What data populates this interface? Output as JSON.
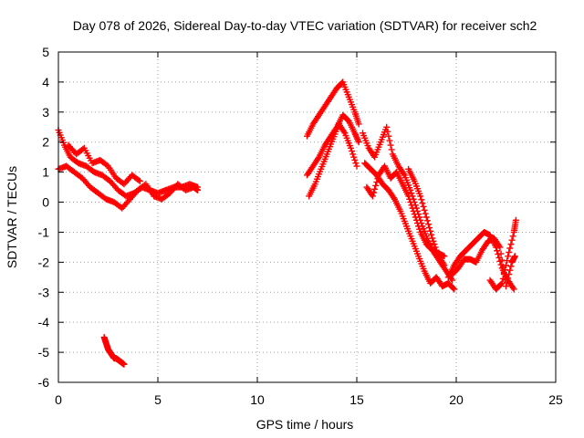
{
  "chart_data": {
    "type": "scatter",
    "title": "Day 078 of 2026, Sidereal Day-to-day VTEC variation (SDTVAR) for receiver sch2",
    "xlabel": "GPS time / hours",
    "ylabel": "SDTVAR / TECUs",
    "xlim": [
      0,
      25
    ],
    "ylim": [
      -6,
      5
    ],
    "xticks": [
      "0",
      "5",
      "10",
      "15",
      "20",
      "25"
    ],
    "yticks": [
      "-6",
      "-5",
      "-4",
      "-3",
      "-2",
      "-1",
      "0",
      "1",
      "2",
      "3",
      "4",
      "5"
    ],
    "grid": true,
    "marker": "+",
    "series": [
      {
        "name": "sdtvar",
        "color": "#ff0000",
        "segments": [
          {
            "x": [
              0.0,
              0.3,
              0.6,
              1.0,
              1.4,
              1.8,
              2.2,
              2.6,
              3.0,
              3.4,
              3.8,
              4.2,
              4.6,
              5.0,
              5.4,
              5.8,
              6.2,
              6.6,
              7.0
            ],
            "y": [
              2.4,
              1.9,
              1.5,
              1.3,
              1.2,
              1.0,
              0.9,
              0.7,
              0.4,
              0.2,
              0.3,
              0.5,
              0.4,
              0.3,
              0.4,
              0.5,
              0.5,
              0.6,
              0.5
            ]
          },
          {
            "x": [
              0.0,
              0.4,
              0.8,
              1.2,
              1.6,
              2.0,
              2.4,
              2.8,
              3.2,
              3.6,
              4.0,
              4.4,
              4.8,
              5.2,
              5.6,
              6.0,
              6.4,
              6.8,
              7.0
            ],
            "y": [
              1.1,
              1.2,
              1.0,
              0.8,
              0.5,
              0.3,
              0.1,
              0.0,
              -0.2,
              0.1,
              0.4,
              0.6,
              0.2,
              0.1,
              0.3,
              0.6,
              0.4,
              0.5,
              0.4
            ]
          },
          {
            "x": [
              0.5,
              0.9,
              1.3,
              1.7,
              2.1,
              2.5,
              2.9,
              3.3,
              3.7,
              4.1
            ],
            "y": [
              1.9,
              1.6,
              1.8,
              1.3,
              1.4,
              1.2,
              0.8,
              0.6,
              0.9,
              0.7
            ]
          },
          {
            "x": [
              2.3,
              2.4,
              2.5,
              2.6,
              2.7,
              2.8,
              2.9,
              3.0,
              3.1,
              3.2,
              3.3
            ],
            "y": [
              -4.5,
              -4.7,
              -4.9,
              -5.0,
              -5.1,
              -5.2,
              -5.2,
              -5.25,
              -5.3,
              -5.35,
              -5.4
            ]
          },
          {
            "x": [
              12.5,
              12.8,
              13.1,
              13.4,
              13.7,
              14.0,
              14.3,
              14.6,
              14.9,
              15.1
            ],
            "y": [
              2.2,
              2.6,
              2.9,
              3.2,
              3.5,
              3.8,
              4.0,
              3.5,
              3.0,
              2.6
            ]
          },
          {
            "x": [
              12.5,
              12.8,
              13.1,
              13.4,
              13.7,
              14.0,
              14.3,
              14.6,
              14.9,
              15.1
            ],
            "y": [
              0.9,
              1.2,
              1.5,
              1.9,
              2.2,
              2.5,
              2.9,
              2.7,
              2.3,
              2.0
            ]
          },
          {
            "x": [
              12.6,
              12.9,
              13.2,
              13.5,
              13.8,
              14.1,
              14.4,
              14.7,
              15.0
            ],
            "y": [
              0.2,
              0.6,
              1.1,
              1.6,
              2.1,
              2.6,
              2.3,
              1.8,
              1.2
            ]
          },
          {
            "x": [
              15.3,
              15.6,
              15.9,
              16.2,
              16.5,
              16.8,
              17.1,
              17.4,
              17.7,
              18.0,
              18.3,
              18.6,
              18.9,
              19.2,
              19.5,
              19.8
            ],
            "y": [
              2.3,
              1.8,
              1.5,
              2.0,
              2.5,
              1.6,
              1.2,
              0.9,
              0.4,
              -0.2,
              -0.8,
              -1.3,
              -1.7,
              -2.0,
              -2.3,
              -2.6
            ]
          },
          {
            "x": [
              15.4,
              15.7,
              16.0,
              16.3,
              16.6,
              16.9,
              17.2,
              17.5,
              17.8,
              18.1,
              18.4,
              18.7,
              19.0,
              19.3,
              19.6,
              19.9
            ],
            "y": [
              1.3,
              1.1,
              0.9,
              0.6,
              0.4,
              0.1,
              -0.3,
              -0.8,
              -1.3,
              -1.8,
              -2.3,
              -2.7,
              -2.5,
              -2.8,
              -2.7,
              -2.9
            ]
          },
          {
            "x": [
              15.5,
              15.8,
              16.1,
              16.4,
              16.7,
              17.0,
              17.3,
              17.6,
              17.9,
              18.2,
              18.5,
              18.8,
              19.1,
              19.4
            ],
            "y": [
              0.5,
              0.2,
              0.9,
              1.2,
              0.8,
              1.0,
              0.6,
              0.2,
              -0.4,
              -1.0,
              -1.4,
              -1.6,
              -1.7,
              -1.8
            ]
          },
          {
            "x": [
              17.6,
              17.9,
              18.2,
              18.5,
              18.8,
              19.1,
              19.4
            ],
            "y": [
              1.1,
              0.7,
              0.2,
              -0.5,
              -1.2,
              -1.8,
              -2.1
            ]
          },
          {
            "x": [
              19.6,
              19.9,
              20.2,
              20.5,
              20.8,
              21.1,
              21.4,
              21.7,
              22.0,
              22.3,
              22.6,
              22.9
            ],
            "y": [
              -2.5,
              -2.1,
              -1.8,
              -1.6,
              -1.4,
              -1.2,
              -1.0,
              -1.1,
              -1.5,
              -2.2,
              -2.6,
              -2.9
            ]
          },
          {
            "x": [
              19.8,
              20.1,
              20.4,
              20.7,
              21.0,
              21.3,
              21.6,
              21.9,
              22.2,
              22.5,
              22.8,
              22.95
            ],
            "y": [
              -2.4,
              -2.2,
              -1.9,
              -1.9,
              -2.0,
              -1.6,
              -1.3,
              -1.2,
              -1.5,
              -2.8,
              -2.0,
              -1.8
            ]
          },
          {
            "x": [
              21.7,
              22.0,
              22.3,
              22.6,
              22.9,
              23.0
            ],
            "y": [
              -2.6,
              -2.9,
              -2.7,
              -1.8,
              -1.0,
              -0.6
            ]
          }
        ]
      }
    ]
  }
}
